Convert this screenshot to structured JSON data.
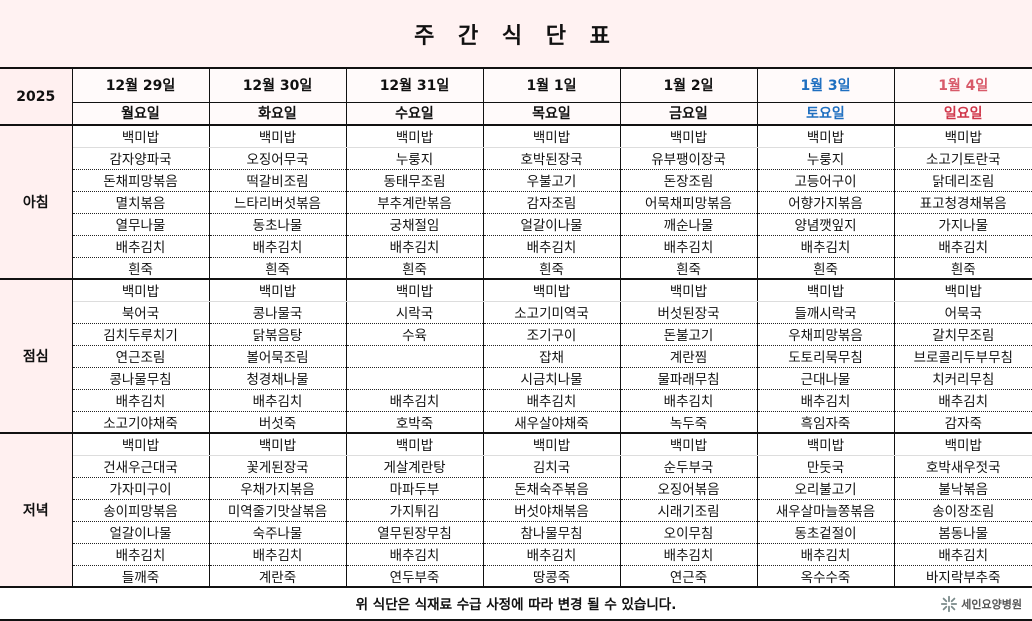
{
  "title": "주 간 식 단 표",
  "year": "2025",
  "colors": {
    "saturday": "#1f6fc0",
    "sunday": "#d0364a",
    "sunday_date": "#d85a6a"
  },
  "days": [
    {
      "date": "12월 29일",
      "dow": "월요일"
    },
    {
      "date": "12월 30일",
      "dow": "화요일"
    },
    {
      "date": "12월 31일",
      "dow": "수요일"
    },
    {
      "date": "1월 1일",
      "dow": "목요일"
    },
    {
      "date": "1월 2일",
      "dow": "금요일"
    },
    {
      "date": "1월 3일",
      "dow": "토요일"
    },
    {
      "date": "1월 4일",
      "dow": "일요일"
    }
  ],
  "meals": [
    {
      "name": "아침",
      "rows": [
        [
          "백미밥",
          "백미밥",
          "백미밥",
          "백미밥",
          "백미밥",
          "백미밥",
          "백미밥"
        ],
        [
          "감자양파국",
          "오징어무국",
          "누룽지",
          "호박된장국",
          "유부팽이장국",
          "누룽지",
          "소고기토란국"
        ],
        [
          "돈채피망볶음",
          "떡갈비조림",
          "동태무조림",
          "우불고기",
          "돈장조림",
          "고등어구이",
          "닭데리조림"
        ],
        [
          "멸치볶음",
          "느타리버섯볶음",
          "부추계란볶음",
          "감자조림",
          "어묵채피망볶음",
          "어향가지볶음",
          "표고청경채볶음"
        ],
        [
          "열무나물",
          "동초나물",
          "궁채절임",
          "얼갈이나물",
          "깨순나물",
          "양념깻잎지",
          "가지나물"
        ],
        [
          "배추김치",
          "배추김치",
          "배추김치",
          "배추김치",
          "배추김치",
          "배추김치",
          "배추김치"
        ],
        [
          "흰죽",
          "흰죽",
          "흰죽",
          "흰죽",
          "흰죽",
          "흰죽",
          "흰죽"
        ]
      ]
    },
    {
      "name": "점심",
      "rows": [
        [
          "백미밥",
          "백미밥",
          "백미밥",
          "백미밥",
          "백미밥",
          "백미밥",
          "백미밥"
        ],
        [
          "북어국",
          "콩나물국",
          "시락국",
          "소고기미역국",
          "버섯된장국",
          "들깨시락국",
          "어묵국"
        ],
        [
          "김치두루치기",
          "닭볶음탕",
          "수육",
          "조기구이",
          "돈불고기",
          "우채피망볶음",
          "갈치무조림"
        ],
        [
          "연근조림",
          "볼어묵조림",
          "",
          "잡채",
          "계란찜",
          "도토리묵무침",
          "브로콜리두부무침"
        ],
        [
          "콩나물무침",
          "청경채나물",
          "",
          "시금치나물",
          "물파래무침",
          "근대나물",
          "치커리무침"
        ],
        [
          "배추김치",
          "배추김치",
          "배추김치",
          "배추김치",
          "배추김치",
          "배추김치",
          "배추김치"
        ],
        [
          "소고기야채죽",
          "버섯죽",
          "호박죽",
          "새우살야채죽",
          "녹두죽",
          "흑임자죽",
          "감자죽"
        ]
      ]
    },
    {
      "name": "저녁",
      "rows": [
        [
          "백미밥",
          "백미밥",
          "백미밥",
          "백미밥",
          "백미밥",
          "백미밥",
          "백미밥"
        ],
        [
          "건새우근대국",
          "꽃게된장국",
          "게살계란탕",
          "김치국",
          "순두부국",
          "만둣국",
          "호박새우젓국"
        ],
        [
          "가자미구이",
          "우채가지볶음",
          "마파두부",
          "돈채숙주볶음",
          "오징어볶음",
          "오리불고기",
          "불낙볶음"
        ],
        [
          "송이피망볶음",
          "미역줄기맛살볶음",
          "가지튀김",
          "버섯야채볶음",
          "시래기조림",
          "새우살마늘쫑볶음",
          "송이장조림"
        ],
        [
          "얼갈이나물",
          "숙주나물",
          "열무된장무침",
          "참나물무침",
          "오이무침",
          "동초겉절이",
          "봄동나물"
        ],
        [
          "배추김치",
          "배추김치",
          "배추김치",
          "배추김치",
          "배추김치",
          "배추김치",
          "배추김치"
        ],
        [
          "들깨죽",
          "계란죽",
          "연두부죽",
          "땅콩죽",
          "연근죽",
          "옥수수죽",
          "바지락부추죽"
        ]
      ]
    }
  ],
  "footer": "위 식단은 식재료 수급 사정에 따라 변경 될 수 있습니다.",
  "logo": "세인요양병원"
}
